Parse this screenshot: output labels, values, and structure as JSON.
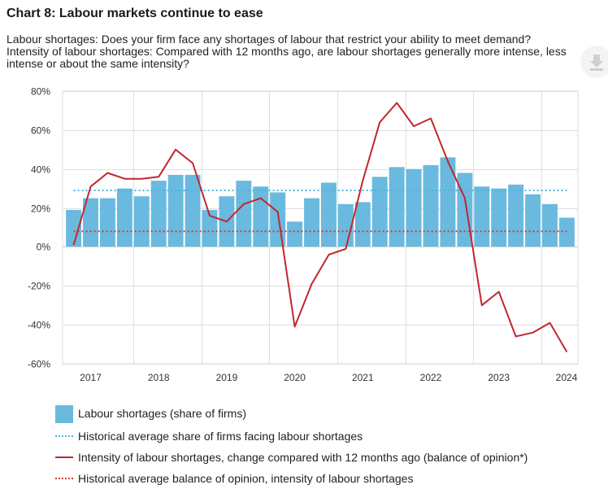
{
  "title": "Chart 8: Labour markets continue to ease",
  "subtitle_lines": [
    "Labour shortages: Does your firm face any shortages of labour that restrict your ability to meet demand?",
    "Intensity of labour shortages: Compared with 12 months ago, are labour shortages generally more intense, less",
    "intense or about the same intensity?"
  ],
  "colors": {
    "bar": "#6ab9df",
    "bar_avg": "#4fb3e0",
    "line": "#c1272d",
    "line_avg": "#d23a3a",
    "grid": "#dedede"
  },
  "chart_data": {
    "type": "bar",
    "title": "Chart 8: Labour markets continue to ease",
    "xlabel": "",
    "ylabel": "",
    "ylim": [
      -60,
      80
    ],
    "yticks": [
      80,
      60,
      40,
      20,
      0,
      -20,
      -40,
      -60
    ],
    "ytick_labels": [
      "80%",
      "60%",
      "40%",
      "20%",
      "0%",
      "-20%",
      "-40%",
      "-60%"
    ],
    "x_start_year": 2017,
    "periods_per_year": 4,
    "x_year_labels": [
      "2017",
      "2018",
      "2019",
      "2020",
      "2021",
      "2022",
      "2023",
      "2024"
    ],
    "series": [
      {
        "name": "Labour shortages (share of firms)",
        "kind": "bar",
        "values": [
          19,
          25,
          25,
          30,
          26,
          34,
          37,
          37,
          19,
          26,
          34,
          31,
          28,
          13,
          25,
          33,
          22,
          23,
          36,
          41,
          40,
          42,
          46,
          38,
          31,
          30,
          32,
          27,
          22,
          15
        ]
      },
      {
        "name": "Intensity of labour shortages, change compared with 12 months ago (balance of opinion*)",
        "kind": "line",
        "values": [
          1,
          31,
          38,
          35,
          35,
          36,
          50,
          43,
          16,
          13,
          22,
          25,
          18,
          -41,
          -19,
          -4,
          -1,
          34,
          64,
          74,
          62,
          66,
          44,
          25,
          -30,
          -23,
          -46,
          -44,
          -39,
          -54
        ]
      }
    ],
    "reference_lines": [
      {
        "name": "Historical average share of firms facing labour shortages",
        "value": 29
      },
      {
        "name": "Historical average balance of opinion, intensity of labour shortages",
        "value": 8
      }
    ],
    "legend": [
      "Labour shortages (share of firms)",
      "Historical average share of firms facing labour shortages",
      "Intensity of labour shortages, change compared with 12 months ago (balance of opinion*)",
      "Historical average balance of opinion, intensity of labour shortages"
    ],
    "legend_position": "bottom"
  }
}
